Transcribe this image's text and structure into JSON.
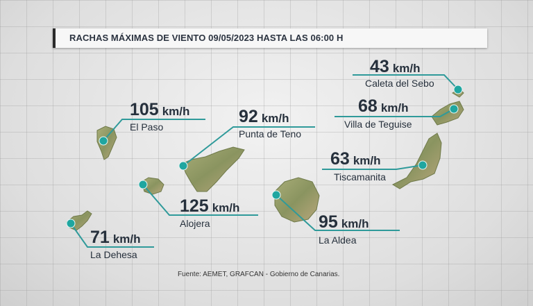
{
  "title": "RACHAS MÁXIMAS DE VIENTO 09/05/2023 HASTA LAS 06:00 H",
  "unit": "km/h",
  "stations": [
    {
      "id": "caleta-del-sebo",
      "speed": "43",
      "place": "Caleta del Sebo"
    },
    {
      "id": "villa-de-teguise",
      "speed": "68",
      "place": "Villa de Teguise"
    },
    {
      "id": "el-paso",
      "speed": "105",
      "place": "El Paso"
    },
    {
      "id": "punta-de-teno",
      "speed": "92",
      "place": "Punta de Teno"
    },
    {
      "id": "tiscamanita",
      "speed": "63",
      "place": "Tiscamanita"
    },
    {
      "id": "alojera",
      "speed": "125",
      "place": "Alojera"
    },
    {
      "id": "la-aldea",
      "speed": "95",
      "place": "La Aldea"
    },
    {
      "id": "la-dehesa",
      "speed": "71",
      "place": "La Dehesa"
    }
  ],
  "source": "Fuente: AEMET, GRAFCAN - Gobierno de Canarias.",
  "colors": {
    "line": "#2f9a9a",
    "marker": "#1fa6a0",
    "land": "#8f9a62",
    "text": "#26303c"
  }
}
